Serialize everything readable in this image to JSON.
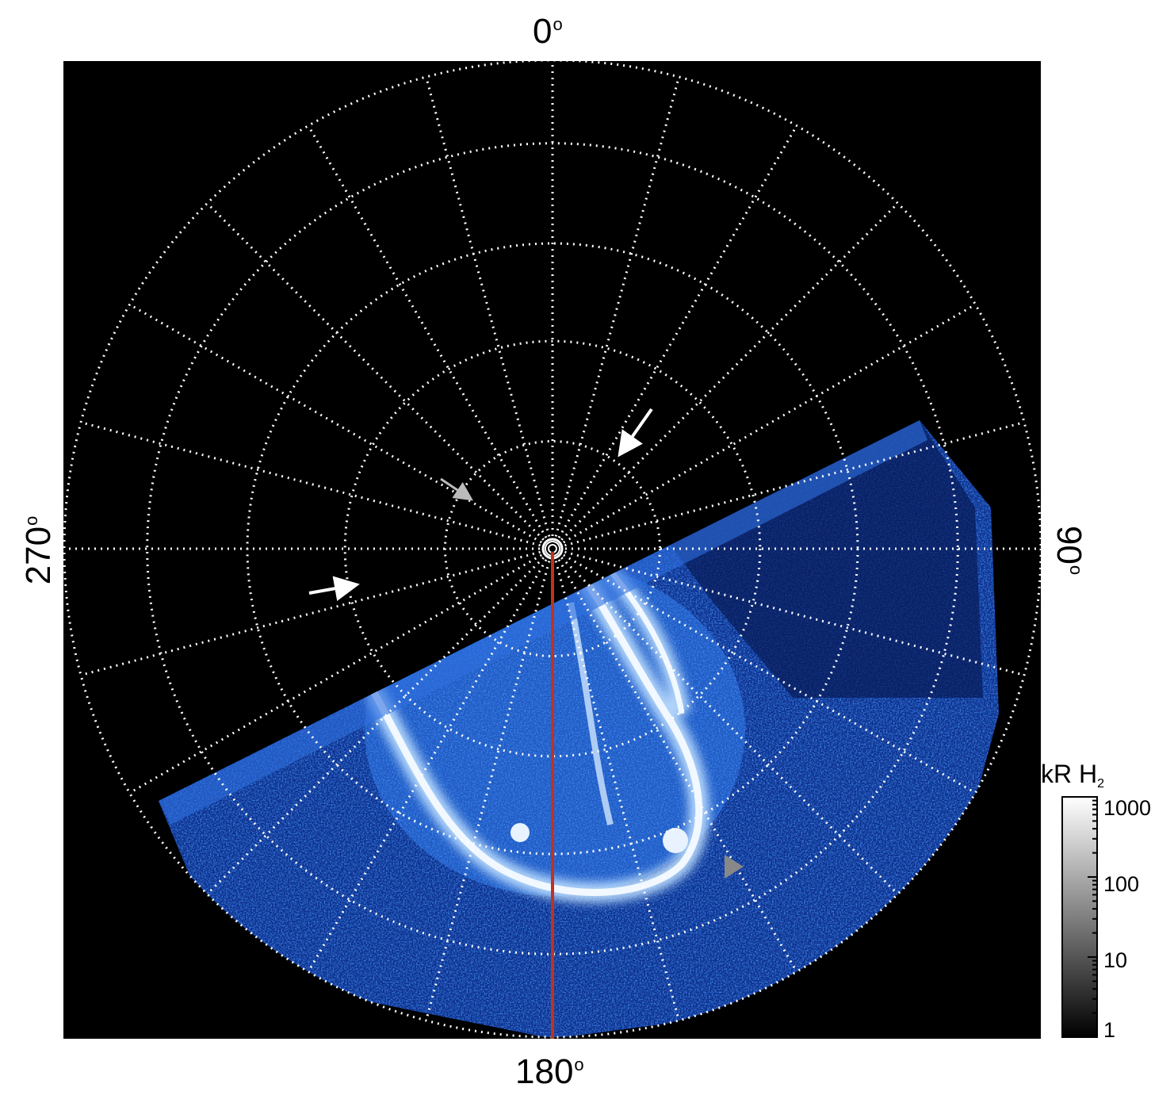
{
  "axis_labels": {
    "top": "0",
    "right": "90",
    "bottom": "180",
    "left": "270",
    "degree_symbol": "o"
  },
  "colorbar": {
    "title": "kR H",
    "title_subscript": "2",
    "scale": "log",
    "ticks": [
      "1000",
      "100",
      "10",
      "1"
    ],
    "range": [
      1,
      1000
    ],
    "colors": [
      "#000000",
      "#ffffff"
    ]
  },
  "image": {
    "background": "#000000",
    "aurora_color": "#1e5fd8",
    "aurora_highlight": "#e8f3ff",
    "grid_color": "#ffffff",
    "meridian_line_color": "#c0321c",
    "arrows": [
      {
        "color": "#ffffff",
        "icon": "arrow-icon"
      },
      {
        "color": "#bbbbbb",
        "icon": "arrow-icon"
      },
      {
        "color": "#ffffff",
        "icon": "arrow-icon"
      },
      {
        "color": "#888888",
        "icon": "triangle-marker-icon"
      }
    ]
  }
}
